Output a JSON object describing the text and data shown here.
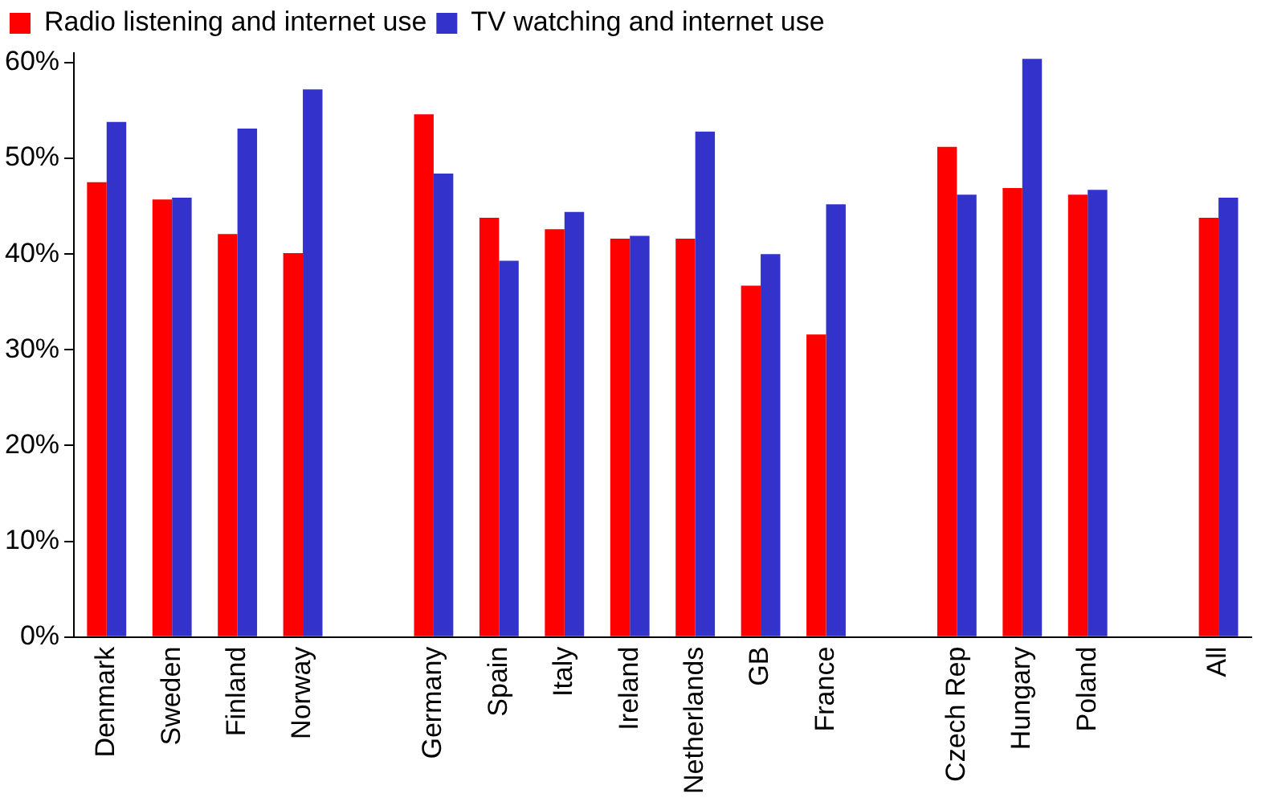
{
  "chart_data": {
    "type": "bar",
    "categories": [
      "Denmark",
      "Sweden",
      "Finland",
      "Norway",
      null,
      "Germany",
      "Spain",
      "Italy",
      "Ireland",
      "Netherlands",
      "GB",
      "France",
      null,
      "Czech Rep",
      "Hungary",
      "Poland",
      null,
      "All"
    ],
    "series": [
      {
        "name": "Radio listening and internet use",
        "color": "#ff0000",
        "values": [
          47.5,
          45.7,
          42.1,
          40.1,
          null,
          54.6,
          43.8,
          42.6,
          41.6,
          41.6,
          36.7,
          31.6,
          null,
          51.2,
          46.9,
          46.2,
          null,
          43.8
        ]
      },
      {
        "name": "TV watching and internet use",
        "color": "#3333cc",
        "values": [
          53.8,
          45.9,
          53.1,
          57.2,
          null,
          48.4,
          39.3,
          44.4,
          41.9,
          52.8,
          40.0,
          45.2,
          null,
          46.2,
          60.4,
          46.7,
          null,
          45.9
        ]
      }
    ],
    "ylim": [
      0,
      61
    ],
    "yticks": [
      {
        "value": 0,
        "label": "0%"
      },
      {
        "value": 10,
        "label": "10%"
      },
      {
        "value": 20,
        "label": "20%"
      },
      {
        "value": 30,
        "label": "30%"
      },
      {
        "value": 40,
        "label": "40%"
      },
      {
        "value": 50,
        "label": "50%"
      },
      {
        "value": 60,
        "label": "60%"
      }
    ],
    "grid": false,
    "legend": "top left"
  }
}
